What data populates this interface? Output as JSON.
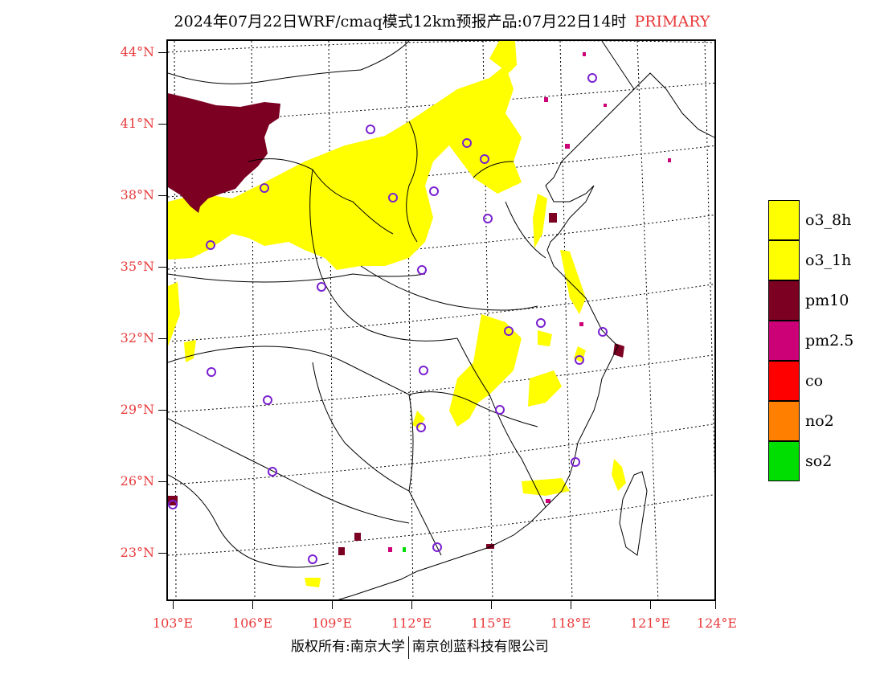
{
  "header": {
    "title": "2024年07月22日WRF/cmaq模式12km预报产品:07月22日14时",
    "tag": "PRIMARY"
  },
  "map": {
    "lat_labels": [
      "44°N",
      "41°N",
      "38°N",
      "35°N",
      "32°N",
      "29°N",
      "26°N",
      "23°N"
    ],
    "lon_labels": [
      "103°E",
      "106°E",
      "109°E",
      "112°E",
      "115°E",
      "118°E",
      "121°E",
      "124°E"
    ],
    "colors": {
      "axis_label": "#e8393a",
      "border": "#000000",
      "grid": "#000000",
      "station_marker": "#7a20d0"
    }
  },
  "legend": {
    "items": [
      {
        "label": "o3_8h",
        "color": "#ffff00"
      },
      {
        "label": "o3_1h",
        "color": "#ffff00"
      },
      {
        "label": "pm10",
        "color": "#7b0022"
      },
      {
        "label": "pm2.5",
        "color": "#cc0077"
      },
      {
        "label": "co",
        "color": "#ff0000"
      },
      {
        "label": "no2",
        "color": "#ff7f00"
      },
      {
        "label": "so2",
        "color": "#00dd00"
      }
    ]
  },
  "footer": {
    "left_text": "版权所有:南京大学",
    "right_text": "南京创蓝科技有限公司"
  }
}
